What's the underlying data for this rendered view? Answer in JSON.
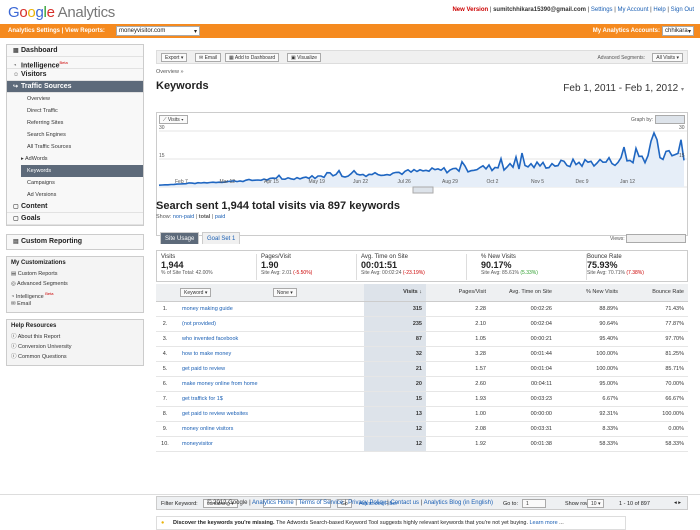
{
  "header": {
    "logo_google": "Google",
    "logo_analytics": "Analytics",
    "new_version": "New Version",
    "email": "sumitchhikara15390@gmail.com",
    "links": [
      "Settings",
      "My Account",
      "Help",
      "Sign Out"
    ]
  },
  "bar": {
    "settings": "Analytics Settings",
    "view_reports": "View Reports:",
    "site": "moneyvisitor.com",
    "accounts_label": "My Analytics Accounts:",
    "account": "chhikara"
  },
  "nav": {
    "dashboard": "Dashboard",
    "intelligence": "Intelligence",
    "beta": "Beta",
    "visitors": "Visitors",
    "traffic_sources": "Traffic Sources",
    "subs": [
      "Overview",
      "Direct Traffic",
      "Referring Sites",
      "Search Engines",
      "All Traffic Sources"
    ],
    "adwords": "AdWords",
    "keywords": "Keywords",
    "campaigns": "Campaigns",
    "ad_versions": "Ad Versions",
    "content": "Content",
    "goals": "Goals",
    "custom_reporting": "Custom Reporting"
  },
  "customizations": {
    "title": "My Customizations",
    "items": [
      "Custom Reports",
      "Advanced Segments",
      "Intelligence",
      "Email"
    ],
    "beta": "Beta"
  },
  "help": {
    "title": "Help Resources",
    "items": [
      "About this Report",
      "Conversion University",
      "Common Questions"
    ]
  },
  "toolbar": {
    "export": "Export",
    "email": "Email",
    "add_dashboard": "Add to Dashboard",
    "visualize": "Visualize",
    "adv_seg_label": "Advanced Segments:",
    "adv_seg": "All Visits"
  },
  "breadcrumb": "Overview »",
  "page_title": "Keywords",
  "date_range": "Feb 1, 2011 - Feb 1, 2012",
  "graph": {
    "metric": "Visits",
    "graph_by": "Graph by:",
    "y_labels": [
      "30",
      "15"
    ],
    "x_labels": [
      "Feb 7",
      "Mar 12",
      "Apr 15",
      "May 19",
      "Jun 22",
      "Jul 26",
      "Aug 29",
      "Oct 2",
      "Nov 5",
      "Dec 9",
      "Jan 12"
    ]
  },
  "summary": {
    "title": "Search sent 1,944 total visits via 897 keywords",
    "show_label": "Show:",
    "non_paid": "non-paid",
    "total": "total",
    "paid": "paid"
  },
  "tabs": {
    "site_usage": "Site Usage",
    "goal_set": "Goal Set 1",
    "views": "Views:"
  },
  "stats": [
    {
      "k": "Visits",
      "v": "1,944",
      "s": "% of Site Total: 42.00%",
      "d": ""
    },
    {
      "k": "Pages/Visit",
      "v": "1.90",
      "s": "Site Avg: 2.01",
      "d": "(-5.50%)"
    },
    {
      "k": "Avg. Time on Site",
      "v": "00:01:51",
      "s": "Site Avg: 00:02:24",
      "d": "(-23.19%)"
    },
    {
      "k": "% New Visits",
      "v": "90.17%",
      "s": "Site Avg: 85.61%",
      "d": "(5.33%)"
    },
    {
      "k": "Bounce Rate",
      "v": "75.93%",
      "s": "Site Avg: 70.71%",
      "d": "(7.38%)"
    }
  ],
  "table": {
    "dim": "Keyword",
    "dim2": "None",
    "cols": [
      "Visits",
      "Pages/Visit",
      "Avg. Time on Site",
      "% New Visits",
      "Bounce Rate"
    ],
    "rows": [
      [
        "1.",
        "money making guide",
        "315",
        "2.28",
        "00:02:26",
        "88.89%",
        "71.43%"
      ],
      [
        "2.",
        "(not provided)",
        "235",
        "2.10",
        "00:02:04",
        "90.64%",
        "77.87%"
      ],
      [
        "3.",
        "who invented facebook",
        "87",
        "1.05",
        "00:00:21",
        "95.40%",
        "97.70%"
      ],
      [
        "4.",
        "how to make money",
        "32",
        "3.28",
        "00:01:44",
        "100.00%",
        "81.25%"
      ],
      [
        "5.",
        "get paid to review",
        "21",
        "1.57",
        "00:01:04",
        "100.00%",
        "85.71%"
      ],
      [
        "6.",
        "make money online from home",
        "20",
        "2.60",
        "00:04:11",
        "95.00%",
        "70.00%"
      ],
      [
        "7.",
        "get traffick for 1$",
        "15",
        "1.93",
        "00:03:23",
        "6.67%",
        "66.67%"
      ],
      [
        "8.",
        "get paid to review websites",
        "13",
        "1.00",
        "00:00:00",
        "92.31%",
        "100.00%"
      ],
      [
        "9.",
        "money online visitors",
        "12",
        "2.08",
        "00:03:31",
        "8.33%",
        "0.00%"
      ],
      [
        "10.",
        "moneyvisitor",
        "12",
        "1.92",
        "00:01:38",
        "58.33%",
        "58.33%"
      ]
    ]
  },
  "filter": {
    "label": "Filter Keyword:",
    "mode": "containing",
    "go": "Go",
    "advanced": "Advanced Filter",
    "goto": "Go to:",
    "page": "1",
    "show_rows": "Show rows:",
    "rows": "10",
    "range": "1 - 10 of 897"
  },
  "tip": {
    "bold": "Discover the keywords you're missing.",
    "text": "The Adwords Search-based Keyword Tool suggests highly relevant keywords that you're not yet buying.",
    "more": "Learn more"
  },
  "footer": {
    "copyright": "© 2012 Google",
    "links": [
      "Analytics Home",
      "Terms of Service",
      "Privacy Policy",
      "Contact us",
      "Analytics Blog (in English)"
    ]
  }
}
